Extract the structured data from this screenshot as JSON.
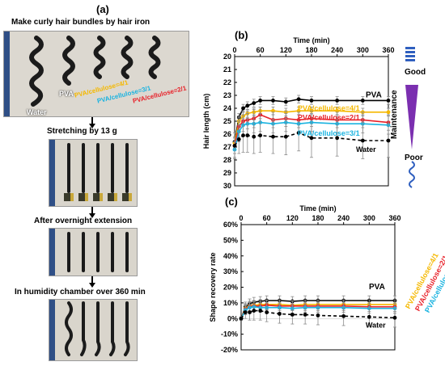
{
  "panel_a": {
    "label": "(a)",
    "steps": [
      "Make curly hair bundles by hair iron",
      "Stretching by 13 g",
      "After overnight extension",
      "In humidity chamber over 360 min"
    ],
    "photo_labels": {
      "water": "Water",
      "pva": "PVA",
      "pva41": "PVA/cellulose=4/1",
      "pva31": "PVA/cellulose=3/1",
      "pva21": "PVA/cellulose=2/1"
    },
    "colors": {
      "pva41": "#f5b800",
      "pva31": "#1ab3e0",
      "pva21": "#e8222a"
    }
  },
  "legend": {
    "good": "Good",
    "maintenance": "Maintenance",
    "poor": "Poor"
  },
  "chart_data": [
    {
      "label": "(b)",
      "type": "line",
      "xlabel": "Time (min)",
      "ylabel": "Hair length (cm)",
      "xticks": [
        0,
        60,
        120,
        180,
        240,
        300,
        360
      ],
      "xlim": [
        0,
        360
      ],
      "ylim": [
        20,
        30
      ],
      "y_inverted": true,
      "yticks": [
        20,
        21,
        22,
        23,
        24,
        25,
        26,
        27,
        28,
        29,
        30
      ],
      "x": [
        0,
        10,
        20,
        30,
        45,
        60,
        90,
        120,
        150,
        180,
        240,
        300,
        360
      ],
      "series": [
        {
          "name": "PVA",
          "color": "#000000",
          "dashed": false,
          "values": [
            26.6,
            24.7,
            24.0,
            23.8,
            23.6,
            23.4,
            23.4,
            23.5,
            23.3,
            23.4,
            23.4,
            23.4,
            23.4
          ],
          "errors": [
            0.4,
            0.3,
            0.3,
            0.3,
            0.3,
            0.3,
            0.3,
            0.3,
            0.3,
            0.3,
            0.3,
            0.3,
            0.3
          ]
        },
        {
          "name": "PVA/cellulose=4/1",
          "color": "#f5b800",
          "dashed": false,
          "values": [
            26.7,
            25.0,
            24.6,
            24.4,
            24.3,
            24.2,
            24.2,
            24.3,
            24.2,
            24.2,
            24.2,
            24.3,
            24.3
          ],
          "errors": [
            0.4,
            0.3,
            0.3,
            0.3,
            0.3,
            0.3,
            0.3,
            0.3,
            0.3,
            0.3,
            0.3,
            0.3,
            0.3
          ]
        },
        {
          "name": "PVA/cellulose=2/1",
          "color": "#e8222a",
          "dashed": false,
          "values": [
            26.9,
            25.4,
            25.0,
            24.9,
            24.8,
            24.5,
            24.9,
            24.8,
            24.9,
            24.8,
            24.9,
            24.9,
            25.1
          ],
          "errors": [
            0.6,
            0.8,
            0.8,
            0.7,
            0.7,
            0.6,
            0.6,
            0.6,
            0.6,
            0.6,
            0.6,
            0.6,
            0.6
          ]
        },
        {
          "name": "PVA/cellulose=3/1",
          "color": "#1ab3e0",
          "dashed": false,
          "values": [
            27.2,
            25.8,
            25.3,
            25.2,
            25.2,
            25.1,
            25.2,
            25.1,
            25.2,
            25.1,
            25.2,
            25.2,
            25.3
          ],
          "errors": [
            0.6,
            0.8,
            0.8,
            0.8,
            0.7,
            0.7,
            0.7,
            0.7,
            0.7,
            0.7,
            0.7,
            0.7,
            0.7
          ]
        },
        {
          "name": "Water",
          "color": "#000000",
          "dashed": true,
          "values": [
            26.9,
            26.4,
            26.1,
            26.1,
            26.2,
            26.1,
            26.2,
            26.2,
            25.9,
            26.3,
            26.3,
            26.5,
            26.5
          ],
          "errors": [
            1.0,
            1.1,
            1.3,
            1.3,
            1.3,
            1.3,
            1.3,
            1.4,
            1.4,
            1.5,
            1.4,
            1.4,
            1.3
          ]
        }
      ]
    },
    {
      "label": "(c)",
      "type": "line",
      "xlabel": "Time (min)",
      "ylabel": "Shape recovery rate",
      "xticks": [
        0,
        60,
        120,
        180,
        240,
        300,
        360
      ],
      "xlim": [
        0,
        360
      ],
      "ylim": [
        -20,
        60
      ],
      "y_inverted": false,
      "yticks": [
        -20,
        -10,
        0,
        10,
        20,
        30,
        40,
        50,
        60
      ],
      "ytick_labels": [
        "-20%",
        "-10%",
        "0%",
        "10%",
        "20%",
        "30%",
        "40%",
        "50%",
        "60%"
      ],
      "x": [
        0,
        10,
        20,
        30,
        45,
        60,
        90,
        120,
        150,
        180,
        240,
        300,
        360
      ],
      "series": [
        {
          "name": "PVA",
          "color": "#000000",
          "dashed": false,
          "values": [
            0,
            7.5,
            9.5,
            10.5,
            11,
            11.5,
            11.5,
            11,
            11.5,
            11.5,
            11.5,
            11.5,
            11.5
          ],
          "errors": [
            1,
            3,
            3,
            3,
            3,
            3,
            3,
            3,
            3,
            3,
            3,
            3,
            3
          ]
        },
        {
          "name": "PVA/cellulose=4/1",
          "color": "#f5b800",
          "dashed": false,
          "values": [
            0,
            6.5,
            8,
            8.5,
            9,
            9,
            9,
            8.5,
            9,
            9,
            9,
            9,
            9
          ],
          "errors": [
            1,
            3,
            3,
            3,
            3,
            3,
            3,
            3,
            3,
            3,
            3,
            3,
            3
          ]
        },
        {
          "name": "PVA/cellulose=2/1",
          "color": "#e8222a",
          "dashed": false,
          "values": [
            0,
            6,
            7.5,
            8,
            8,
            8.5,
            8,
            8,
            8,
            8,
            8,
            7.5,
            7.5
          ],
          "errors": [
            1,
            3,
            3,
            3,
            3,
            3,
            3,
            3,
            3,
            3,
            3,
            3,
            3
          ]
        },
        {
          "name": "PVA/cellulose=3/1",
          "color": "#1ab3e0",
          "dashed": false,
          "values": [
            0,
            5.5,
            7,
            7.5,
            7,
            7,
            7,
            6.5,
            7,
            7,
            7,
            6.5,
            6.5
          ],
          "errors": [
            1,
            3,
            3,
            3,
            3,
            3,
            3,
            3,
            3,
            3,
            3,
            3,
            3
          ]
        },
        {
          "name": "Water",
          "color": "#000000",
          "dashed": true,
          "values": [
            0,
            4,
            4,
            5,
            5,
            4,
            3,
            2.5,
            2.5,
            2,
            1.5,
            1,
            0.5
          ],
          "errors": [
            1,
            4,
            5,
            6,
            6,
            6,
            6,
            6,
            6,
            6,
            6,
            6,
            6
          ]
        }
      ]
    }
  ]
}
